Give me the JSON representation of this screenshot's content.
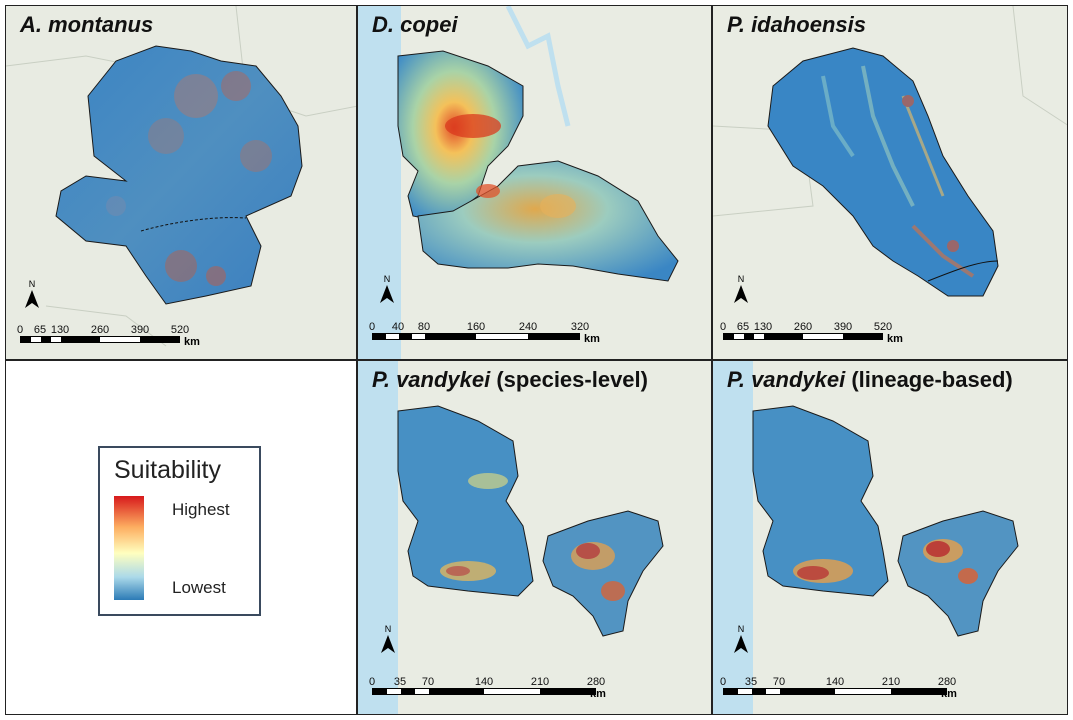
{
  "panels": [
    {
      "title_species": "A. montanus",
      "title_suffix": "",
      "north_label": "N",
      "scale_ticks": [
        "0",
        "65",
        "130",
        "260",
        "390",
        "520"
      ],
      "scale_unit": "km"
    },
    {
      "title_species": "D. copei",
      "title_suffix": "",
      "north_label": "N",
      "scale_ticks": [
        "0",
        "40",
        "80",
        "160",
        "240",
        "320"
      ],
      "scale_unit": "km"
    },
    {
      "title_species": "P. idahoensis",
      "title_suffix": "",
      "north_label": "N",
      "scale_ticks": [
        "0",
        "65",
        "130",
        "260",
        "390",
        "520"
      ],
      "scale_unit": "km"
    },
    {
      "title_species": "P. vandykei",
      "title_suffix": " (species-level)",
      "north_label": "N",
      "scale_ticks": [
        "0",
        "35",
        "70",
        "140",
        "210",
        "280"
      ],
      "scale_unit": "km"
    },
    {
      "title_species": "P. vandykei",
      "title_suffix": " (lineage-based)",
      "north_label": "N",
      "scale_ticks": [
        "0",
        "35",
        "70",
        "140",
        "210",
        "280"
      ],
      "scale_unit": "km"
    }
  ],
  "legend": {
    "title": "Suitability",
    "high_label": "Highest",
    "low_label": "Lowest",
    "ramp_colors": [
      "#d7191c",
      "#fdae61",
      "#ffffbf",
      "#abd9e9",
      "#2c7bb6"
    ]
  },
  "colors": {
    "basemap": "#e9ece4",
    "water": "#bfe0ef",
    "low": "#2f80c2",
    "mid": "#8cc7c9",
    "high": "#e84a27",
    "outline": "#1a1a1a"
  }
}
